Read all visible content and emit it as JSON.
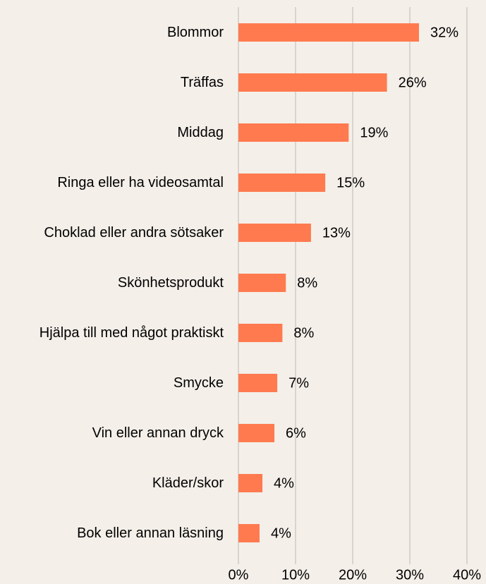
{
  "chart_data": {
    "type": "bar",
    "orientation": "horizontal",
    "categories": [
      "Blommor",
      "Träffas",
      "Middag",
      "Ringa eller ha videosamtal",
      "Choklad eller andra sötsaker",
      "Skönhetsprodukt",
      "Hjälpa till med något praktiskt",
      "Smycke",
      "Vin eller annan dryck",
      "Kläder/skor",
      "Bok eller annan läsning"
    ],
    "values": [
      31.6,
      26,
      19.3,
      15.2,
      12.7,
      8.3,
      7.7,
      6.8,
      6.3,
      4.2,
      3.7
    ],
    "value_labels": [
      "32%",
      "26%",
      "19%",
      "15%",
      "13%",
      "8%",
      "8%",
      "7%",
      "6%",
      "4%",
      "4%"
    ],
    "color": "#ff7a4f",
    "xlim": [
      0,
      40
    ],
    "xticks": [
      {
        "value": 0,
        "label": "0%"
      },
      {
        "value": 10,
        "label": "10%"
      },
      {
        "value": 20,
        "label": "20%"
      },
      {
        "value": 30,
        "label": "30%"
      },
      {
        "value": 40,
        "label": "40%"
      }
    ],
    "grid": true
  }
}
